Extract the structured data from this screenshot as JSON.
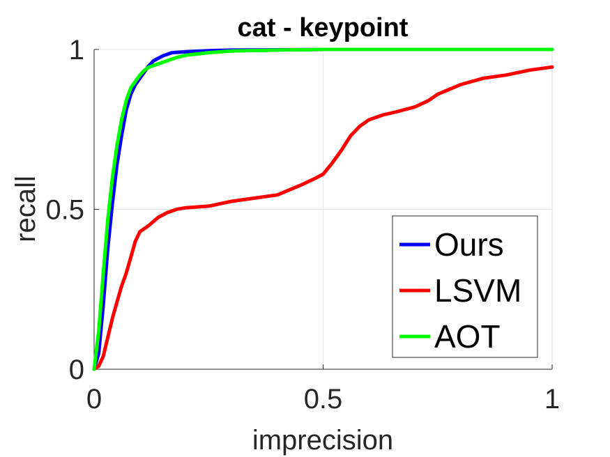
{
  "chart_data": {
    "type": "line",
    "title": "cat - keypoint",
    "xlabel": "imprecision",
    "ylabel": "recall",
    "xlim": [
      0,
      1
    ],
    "ylim": [
      0,
      1
    ],
    "xticks": [
      0,
      0.5,
      1
    ],
    "yticks": [
      0,
      0.5,
      1
    ],
    "xtick_labels": [
      "0",
      "0.5",
      "1"
    ],
    "ytick_labels": [
      "0",
      "0.5",
      "1"
    ],
    "grid": true,
    "legend_position": "bottom-right",
    "series": [
      {
        "name": "Ours",
        "color": "#0000ff",
        "x": [
          0,
          0.01,
          0.02,
          0.03,
          0.04,
          0.05,
          0.06,
          0.07,
          0.08,
          0.09,
          0.1,
          0.11,
          0.12,
          0.13,
          0.15,
          0.17,
          0.2,
          0.25,
          0.3,
          0.4,
          0.5,
          0.6,
          0.8,
          1.0
        ],
        "y": [
          0,
          0.05,
          0.2,
          0.38,
          0.52,
          0.64,
          0.73,
          0.81,
          0.86,
          0.89,
          0.91,
          0.93,
          0.95,
          0.965,
          0.98,
          0.99,
          0.993,
          0.996,
          0.998,
          0.999,
          1.0,
          1.0,
          1.0,
          1.0
        ]
      },
      {
        "name": "LSVM",
        "color": "#ff0000",
        "x": [
          0,
          0.01,
          0.02,
          0.03,
          0.04,
          0.05,
          0.06,
          0.07,
          0.08,
          0.09,
          0.1,
          0.12,
          0.14,
          0.16,
          0.18,
          0.2,
          0.25,
          0.3,
          0.35,
          0.4,
          0.45,
          0.48,
          0.5,
          0.52,
          0.54,
          0.56,
          0.58,
          0.6,
          0.63,
          0.66,
          0.7,
          0.73,
          0.75,
          0.8,
          0.85,
          0.9,
          0.95,
          1.0
        ],
        "y": [
          0,
          0.01,
          0.04,
          0.1,
          0.16,
          0.21,
          0.26,
          0.3,
          0.35,
          0.4,
          0.43,
          0.45,
          0.475,
          0.49,
          0.5,
          0.505,
          0.51,
          0.525,
          0.535,
          0.545,
          0.575,
          0.595,
          0.61,
          0.645,
          0.685,
          0.73,
          0.76,
          0.78,
          0.795,
          0.805,
          0.82,
          0.84,
          0.86,
          0.89,
          0.91,
          0.92,
          0.935,
          0.945
        ]
      },
      {
        "name": "AOT",
        "color": "#00ff00",
        "x": [
          0,
          0.01,
          0.02,
          0.03,
          0.04,
          0.05,
          0.06,
          0.07,
          0.08,
          0.09,
          0.1,
          0.11,
          0.12,
          0.14,
          0.16,
          0.18,
          0.2,
          0.25,
          0.3,
          0.4,
          0.5,
          0.6,
          0.8,
          1.0
        ],
        "y": [
          0,
          0.12,
          0.3,
          0.47,
          0.6,
          0.7,
          0.78,
          0.84,
          0.88,
          0.9,
          0.92,
          0.935,
          0.945,
          0.955,
          0.965,
          0.975,
          0.982,
          0.99,
          0.995,
          0.998,
          1.0,
          1.0,
          1.0,
          1.0
        ]
      }
    ]
  }
}
